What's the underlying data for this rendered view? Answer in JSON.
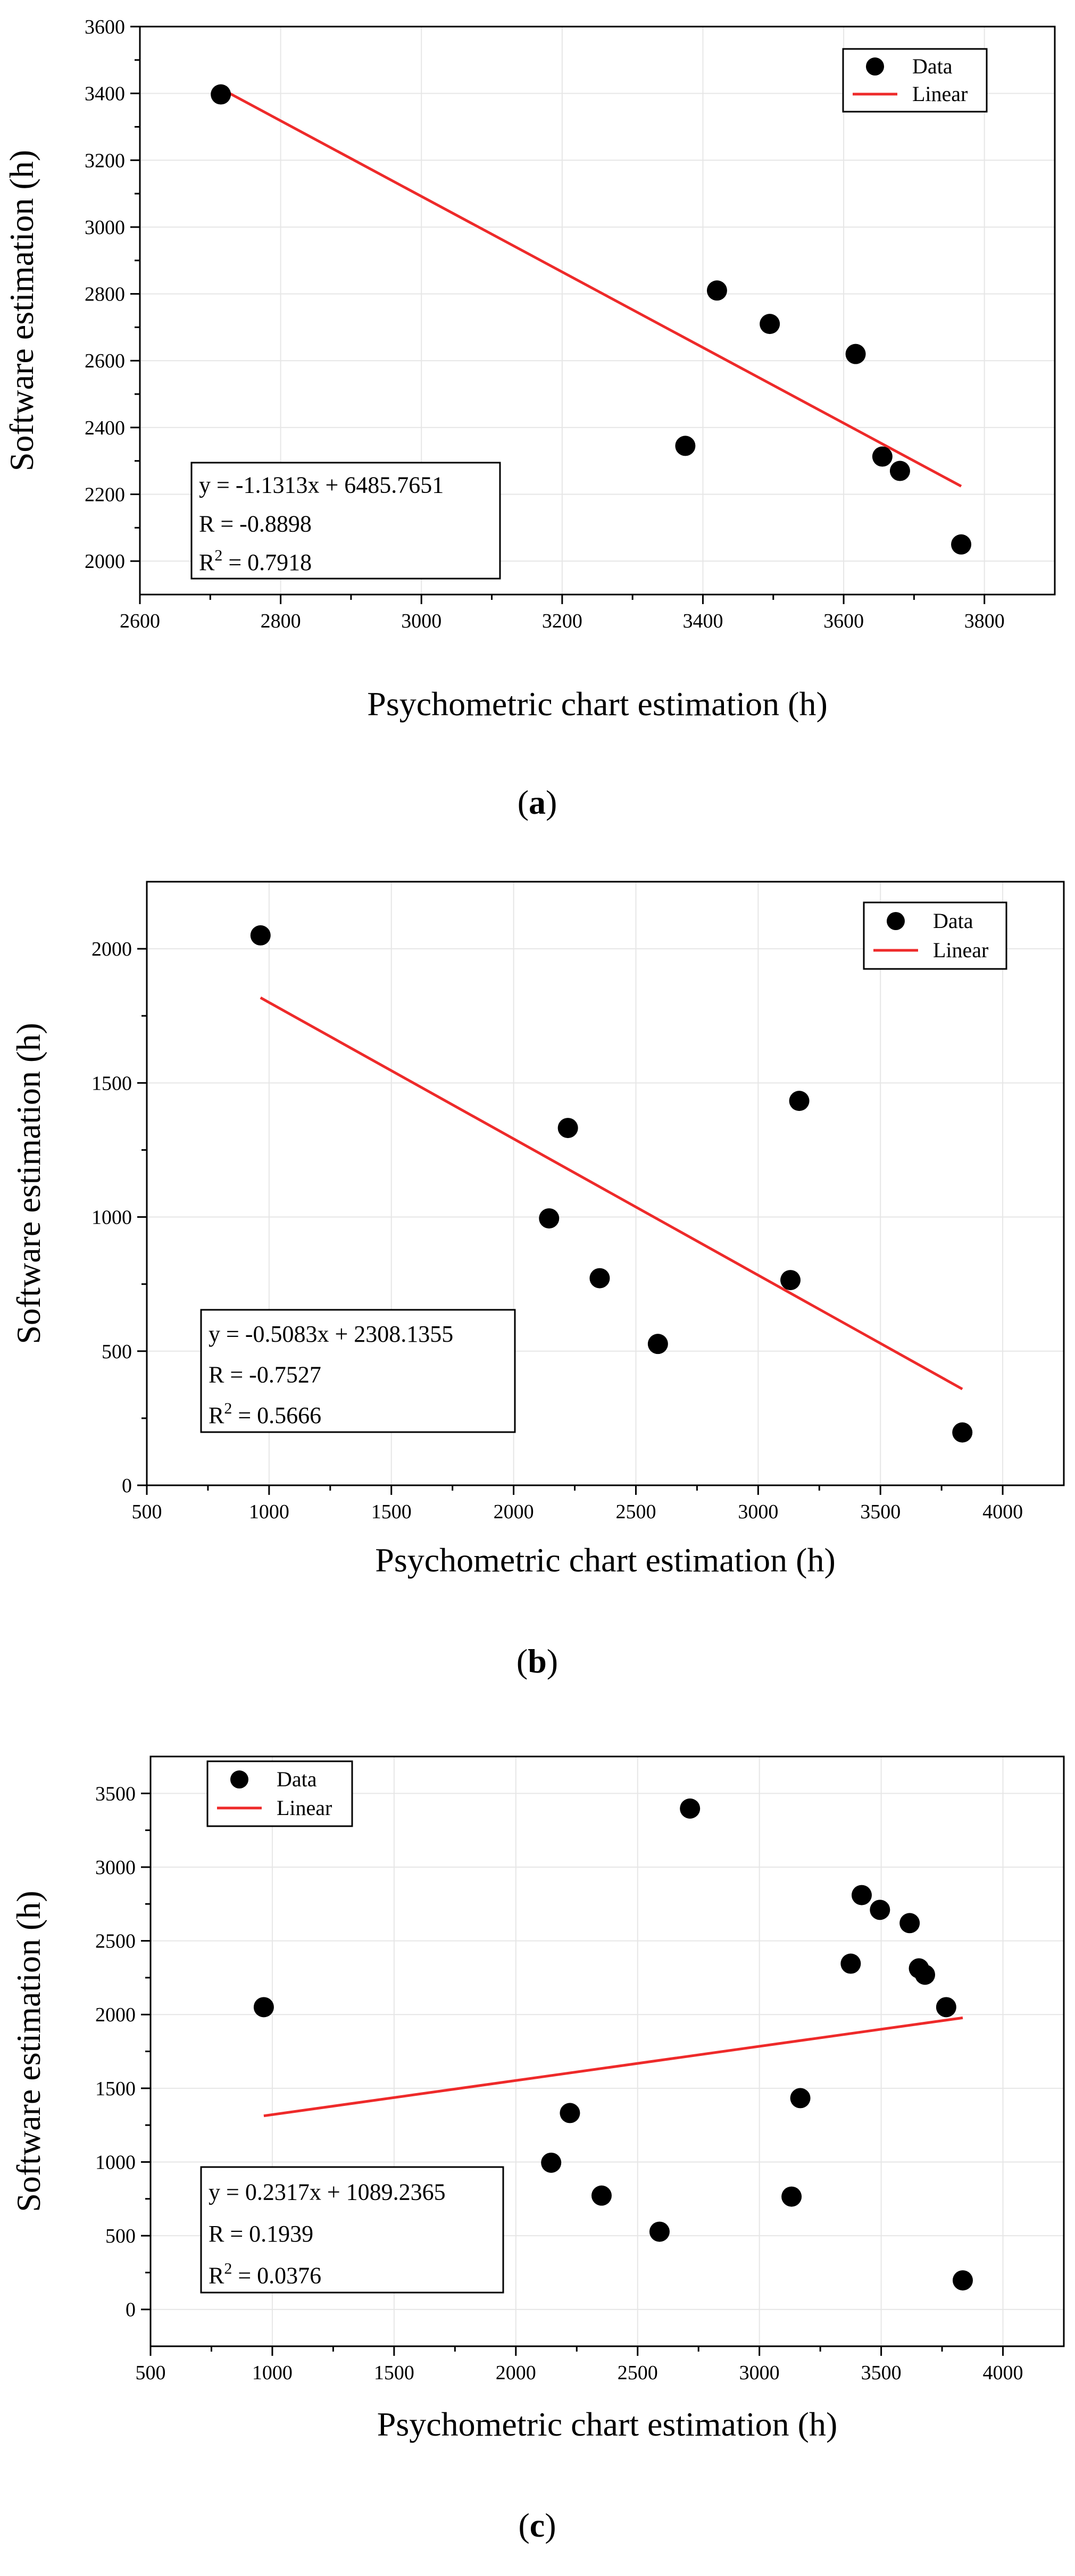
{
  "chart_data": [
    {
      "panel": "a",
      "caption_open": "(",
      "caption_letter": "a",
      "caption_close": ")",
      "type": "scatter",
      "title": "",
      "xlabel": "Psychometric chart estimation (h)",
      "ylabel": "Software estimation (h)",
      "xlim": [
        2600,
        3900
      ],
      "ylim": [
        1900,
        3600
      ],
      "xticks": [
        2600,
        2800,
        3000,
        3200,
        3400,
        3600,
        3800
      ],
      "yticks": [
        2000,
        2200,
        2400,
        2600,
        2800,
        3000,
        3200,
        3400,
        3600
      ],
      "grid": true,
      "legend": {
        "position": "top-right",
        "entries": [
          {
            "label": "Data",
            "kind": "marker"
          },
          {
            "label": "Linear",
            "kind": "line"
          }
        ]
      },
      "series": [
        {
          "name": "Data",
          "points": [
            {
              "x": 2715,
              "y": 3397
            },
            {
              "x": 3375,
              "y": 2345
            },
            {
              "x": 3420,
              "y": 2810
            },
            {
              "x": 3495,
              "y": 2710
            },
            {
              "x": 3617,
              "y": 2620
            },
            {
              "x": 3655,
              "y": 2313
            },
            {
              "x": 3680,
              "y": 2270
            },
            {
              "x": 3767,
              "y": 2050
            }
          ]
        },
        {
          "name": "Linear",
          "x_range": [
            2715,
            3767
          ],
          "slope": -1.1313,
          "intercept": 6485.7651
        }
      ],
      "annotation": {
        "position": "bottom-left",
        "equation": "y = -1.1313x + 6485.7651",
        "r_text": "R = -0.8898",
        "r2_prefix": "R",
        "r2_sup": "2",
        "r2_value": " = 0.7918"
      },
      "colors": {
        "data": "#000000",
        "fit": "#ee2a2a",
        "grid": "#e6e6e6"
      }
    },
    {
      "panel": "b",
      "caption_open": "(",
      "caption_letter": "b",
      "caption_close": ")",
      "type": "scatter",
      "title": "",
      "xlabel": "Psychometric chart estimation (h)",
      "ylabel": "Software estimation (h)",
      "xlim": [
        500,
        4250
      ],
      "ylim": [
        0,
        2250
      ],
      "xticks": [
        500,
        1000,
        1500,
        2000,
        2500,
        3000,
        3500,
        4000
      ],
      "yticks": [
        0,
        500,
        1000,
        1500,
        2000
      ],
      "grid": true,
      "legend": {
        "position": "top-right",
        "entries": [
          {
            "label": "Data",
            "kind": "marker"
          },
          {
            "label": "Linear",
            "kind": "line"
          }
        ]
      },
      "series": [
        {
          "name": "Data",
          "points": [
            {
              "x": 965,
              "y": 2050
            },
            {
              "x": 2145,
              "y": 995
            },
            {
              "x": 2222,
              "y": 1332
            },
            {
              "x": 2352,
              "y": 772
            },
            {
              "x": 2590,
              "y": 527
            },
            {
              "x": 3132,
              "y": 765
            },
            {
              "x": 3168,
              "y": 1433
            },
            {
              "x": 3835,
              "y": 197
            }
          ]
        },
        {
          "name": "Linear",
          "x_range": [
            965,
            3835
          ],
          "slope": -0.5083,
          "intercept": 2308.1355
        }
      ],
      "annotation": {
        "position": "bottom-left",
        "equation": "y = -0.5083x + 2308.1355",
        "r_text": "R = -0.7527",
        "r2_prefix": "R",
        "r2_sup": "2",
        "r2_value": " = 0.5666"
      },
      "colors": {
        "data": "#000000",
        "fit": "#ee2a2a",
        "grid": "#e6e6e6"
      }
    },
    {
      "panel": "c",
      "caption_open": "(",
      "caption_letter": "c",
      "caption_close": ")",
      "type": "scatter",
      "title": "",
      "xlabel": "Psychometric chart estimation (h)",
      "ylabel": "Software estimation (h)",
      "xlim": [
        500,
        4250
      ],
      "ylim": [
        -250,
        3750
      ],
      "xticks": [
        500,
        1000,
        1500,
        2000,
        2500,
        3000,
        3500,
        4000
      ],
      "yticks": [
        0,
        500,
        1000,
        1500,
        2000,
        2500,
        3000,
        3500
      ],
      "grid": true,
      "legend": {
        "position": "top-left",
        "entries": [
          {
            "label": "Data",
            "kind": "marker"
          },
          {
            "label": "Linear",
            "kind": "line"
          }
        ]
      },
      "series": [
        {
          "name": "Data",
          "points": [
            {
              "x": 965,
              "y": 2050
            },
            {
              "x": 2145,
              "y": 995
            },
            {
              "x": 2222,
              "y": 1332
            },
            {
              "x": 2352,
              "y": 772
            },
            {
              "x": 2590,
              "y": 527
            },
            {
              "x": 2715,
              "y": 3397
            },
            {
              "x": 3132,
              "y": 765
            },
            {
              "x": 3168,
              "y": 1433
            },
            {
              "x": 3375,
              "y": 2345
            },
            {
              "x": 3420,
              "y": 2810
            },
            {
              "x": 3495,
              "y": 2710
            },
            {
              "x": 3617,
              "y": 2620
            },
            {
              "x": 3655,
              "y": 2313
            },
            {
              "x": 3680,
              "y": 2270
            },
            {
              "x": 3767,
              "y": 2050
            },
            {
              "x": 3835,
              "y": 197
            }
          ]
        },
        {
          "name": "Linear",
          "x_range": [
            965,
            3835
          ],
          "slope": 0.2317,
          "intercept": 1089.2365
        }
      ],
      "annotation": {
        "position": "bottom-left",
        "equation": "y = 0.2317x + 1089.2365",
        "r_text": "R = 0.1939",
        "r2_prefix": "R",
        "r2_sup": "2",
        "r2_value": " = 0.0376"
      },
      "colors": {
        "data": "#000000",
        "fit": "#ee2a2a",
        "grid": "#e6e6e6"
      }
    }
  ]
}
